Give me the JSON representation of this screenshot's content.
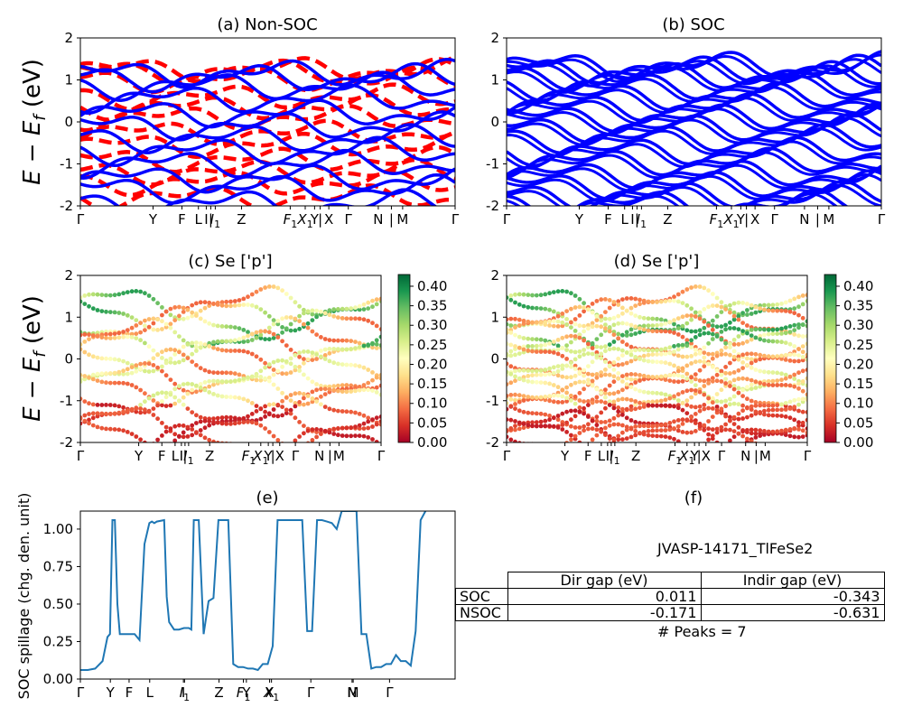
{
  "colors": {
    "band_blue": "#0000ff",
    "band_red": "#ff0000",
    "spillage_line": "#1f77b4"
  },
  "colorbar": {
    "colormap": "RdYlGn",
    "ticks": [
      "0.00",
      "0.05",
      "0.10",
      "0.15",
      "0.20",
      "0.25",
      "0.30",
      "0.35",
      "0.40"
    ]
  },
  "chart_data": [
    {
      "id": "a",
      "type": "line",
      "title": "(a) Non-SOC",
      "ylabel": "$E-E_f$ (eV)",
      "ylim": [
        -2,
        2
      ],
      "yticks": [
        "-2",
        "-1",
        "0",
        "1",
        "2"
      ],
      "xticklabels": [
        "Γ",
        "Y",
        "F",
        "L",
        "I",
        "|",
        "I1",
        "Z",
        "F1",
        "X1",
        "Y",
        "|",
        "X",
        "Γ",
        "N",
        "|",
        "M",
        "Γ"
      ],
      "series": [
        {
          "name": "",
          "style": "dashed-red",
          "values": [
            1.25,
            1.2,
            1.0,
            0.6,
            0.35,
            0.1,
            -0.25,
            -0.55,
            -0.9,
            -1.2,
            -1.45,
            -1.8
          ]
        },
        {
          "name": "",
          "style": "solid-blue",
          "values": [
            1.15,
            1.05,
            0.85,
            0.55,
            0.2,
            -0.1,
            -0.4,
            -0.7,
            -1.0,
            -1.35,
            -1.6,
            -1.95
          ]
        }
      ]
    },
    {
      "id": "b",
      "type": "line",
      "title": "(b) SOC",
      "ylim": [
        -2,
        2
      ],
      "yticks": [
        "-2",
        "-1",
        "0",
        "1",
        "2"
      ],
      "xticklabels": [
        "Γ",
        "Y",
        "F",
        "L",
        "I",
        "|",
        "I1",
        "Z",
        "F1",
        "X1",
        "Y",
        "|",
        "X",
        "Γ",
        "N",
        "|",
        "M",
        "Γ"
      ],
      "series": [
        {
          "name": "",
          "style": "solid-blue",
          "values": [
            1.35,
            1.25,
            1.1,
            0.85,
            0.6,
            0.35,
            0.1,
            -0.15,
            -0.4,
            -0.7,
            -0.95,
            -1.25,
            -1.5,
            -1.75,
            -1.95
          ]
        }
      ]
    },
    {
      "id": "c",
      "type": "scatter",
      "title": "(c)  Se ['p']",
      "ylabel": "$E-E_f$ (eV)",
      "ylim": [
        -2,
        2
      ],
      "yticks": [
        "-2",
        "-1",
        "0",
        "1",
        "2"
      ],
      "xticklabels": [
        "Γ",
        "Y",
        "F",
        "L",
        "I",
        "|",
        "I1",
        "Z",
        "F1",
        "X1",
        "Y",
        "|",
        "X",
        "Γ",
        "N",
        "|",
        "M",
        "Γ"
      ],
      "colorbar_range": [
        0.0,
        0.43
      ]
    },
    {
      "id": "d",
      "type": "scatter",
      "title": "(d) Se ['p']",
      "ylim": [
        -2,
        2
      ],
      "yticks": [
        "-2",
        "-1",
        "0",
        "1",
        "2"
      ],
      "xticklabels": [
        "Γ",
        "Y",
        "F",
        "L",
        "I",
        "|",
        "I1",
        "Z",
        "F1",
        "X1",
        "Y",
        "|",
        "X",
        "Γ",
        "N",
        "|",
        "M",
        "Γ"
      ],
      "colorbar_range": [
        0.0,
        0.43
      ]
    },
    {
      "id": "e",
      "type": "line",
      "title": "(e)",
      "ylabel": "SOC spillage (chg. den. unit)",
      "ylim": [
        0,
        1.12
      ],
      "yticks": [
        "0.00",
        "0.25",
        "0.50",
        "0.75",
        "1.00"
      ],
      "xticklabels": [
        "Γ",
        "Y",
        "F",
        "L",
        "I",
        "I1",
        "Z",
        "F1",
        "Y",
        "X",
        "X1",
        "Γ",
        "N",
        "M",
        "Γ"
      ],
      "x": [
        0,
        3,
        6,
        9,
        11,
        12,
        13,
        14,
        15,
        16,
        18,
        20,
        22,
        24,
        26,
        28,
        29,
        30,
        31,
        34,
        35,
        36,
        38,
        40,
        42,
        44,
        45,
        46,
        48,
        50,
        52,
        54,
        56,
        58,
        60,
        62,
        64,
        66,
        68,
        70,
        72,
        74,
        76,
        78,
        80,
        82,
        84,
        86,
        88,
        90,
        92,
        94,
        96,
        98,
        100,
        102,
        104,
        106,
        108,
        110,
        112,
        114,
        116,
        118,
        120,
        122,
        124,
        126,
        128,
        130,
        132,
        134,
        136,
        138,
        140
      ],
      "values": [
        0.06,
        0.06,
        0.07,
        0.12,
        0.28,
        0.3,
        1.06,
        1.06,
        0.5,
        0.3,
        0.3,
        0.3,
        0.3,
        0.26,
        0.9,
        1.04,
        1.05,
        1.04,
        1.05,
        1.06,
        0.55,
        0.38,
        0.33,
        0.33,
        0.34,
        0.34,
        0.33,
        1.06,
        1.06,
        0.3,
        0.52,
        0.54,
        1.06,
        1.06,
        1.06,
        0.1,
        0.08,
        0.08,
        0.07,
        0.07,
        0.06,
        0.1,
        0.1,
        0.22,
        1.06,
        1.06,
        1.06,
        1.06,
        1.06,
        1.06,
        0.32,
        0.32,
        1.06,
        1.06,
        1.05,
        1.04,
        1.0,
        1.12,
        1.12,
        1.12,
        1.12,
        0.3,
        0.3,
        0.07,
        0.08,
        0.08,
        0.1,
        0.1,
        0.16,
        0.12,
        0.12,
        0.09,
        0.32,
        1.06,
        1.12
      ]
    }
  ],
  "table_panel": {
    "title": "(f)",
    "caption": "JVASP-14171_TlFeSe2",
    "col_labels": [
      "Dir gap (eV)",
      "Indir gap (eV)"
    ],
    "rows": [
      {
        "label": "SOC",
        "dir": "0.011",
        "indir": "-0.343"
      },
      {
        "label": "NSOC",
        "dir": "-0.171",
        "indir": "-0.631"
      }
    ],
    "peaks": "# Peaks = 7"
  }
}
